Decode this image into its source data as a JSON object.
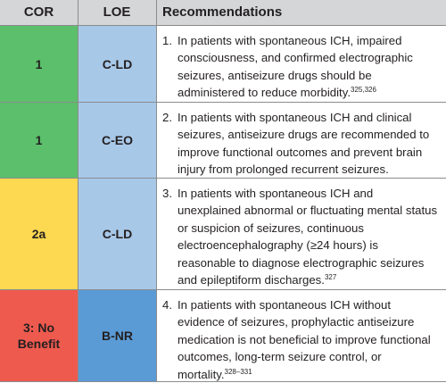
{
  "header": {
    "cor": "COR",
    "loe": "LOE",
    "recommendations": "Recommendations"
  },
  "rows": [
    {
      "cor": "1",
      "cor_color": "#5bbf6b",
      "loe": "C-LD",
      "loe_color": "#a8c8e8",
      "number": "1.",
      "text": "In patients with spontaneous ICH, impaired consciousness, and confirmed electrographic seizures, antiseizure drugs should be administered to reduce morbidity.",
      "refs": "325,326"
    },
    {
      "cor": "1",
      "cor_color": "#5bbf6b",
      "loe": "C-EO",
      "loe_color": "#a8c8e8",
      "number": "2.",
      "text": "In patients with spontaneous ICH and clinical seizures, antiseizure drugs are recommended to improve functional outcomes and prevent brain injury from prolonged recurrent seizures.",
      "refs": ""
    },
    {
      "cor": "2a",
      "cor_color": "#fdd851",
      "loe": "C-LD",
      "loe_color": "#a8c8e8",
      "number": "3.",
      "text": "In patients with spontaneous ICH and unexplained abnormal or fluctuating mental status or suspicion of seizures, continuous electroencephalography (≥24 hours) is reasonable to diagnose electrographic seizures and epileptiform discharges.",
      "refs": "327"
    },
    {
      "cor": "3: No Benefit",
      "cor_color": "#ef5a4f",
      "loe": "B-NR",
      "loe_color": "#5b9bd5",
      "number": "4.",
      "text": "In patients with spontaneous ICH without evidence of seizures, prophylactic antiseizure medication is not beneficial to improve functional outcomes, long-term seizure control, or mortality.",
      "refs": "328–331"
    }
  ]
}
